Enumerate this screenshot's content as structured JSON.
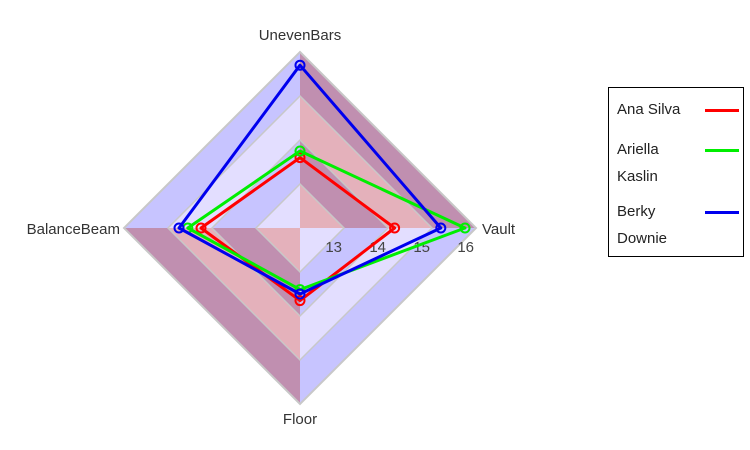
{
  "chart_data": {
    "type": "radar",
    "title": "",
    "axes": [
      "UnevenBars",
      "Vault",
      "Floor",
      "BalanceBeam"
    ],
    "scale": {
      "min": 12,
      "max": 16,
      "ticks": [
        13,
        14,
        15,
        16
      ]
    },
    "grid": true,
    "legend_position": "right",
    "band_colors": [
      "#c08fb0",
      "#c7c4ff",
      "#e4b1bb",
      "#e3deff"
    ],
    "series": [
      {
        "name": "Ana Silva",
        "color": "#ff0000",
        "values": {
          "UnevenBars": 13.6,
          "Vault": 14.15,
          "Floor": 13.65,
          "BalanceBeam": 14.25
        }
      },
      {
        "name": "Ariella Kaslin",
        "color": "#00ee00",
        "values": {
          "UnevenBars": 13.75,
          "Vault": 15.75,
          "Floor": 13.4,
          "BalanceBeam": 14.55
        }
      },
      {
        "name": "Berky Downie",
        "color": "#0000ee",
        "values": {
          "UnevenBars": 15.7,
          "Vault": 15.2,
          "Floor": 13.5,
          "BalanceBeam": 14.75
        }
      }
    ]
  },
  "legend": {
    "items": [
      {
        "line1": "Ana Silva",
        "line2": "",
        "color": "#ff0000"
      },
      {
        "line1": "Ariella",
        "line2": "Kaslin",
        "color": "#00ee00"
      },
      {
        "line1": "Berky",
        "line2": "Downie",
        "color": "#0000ee"
      }
    ]
  }
}
